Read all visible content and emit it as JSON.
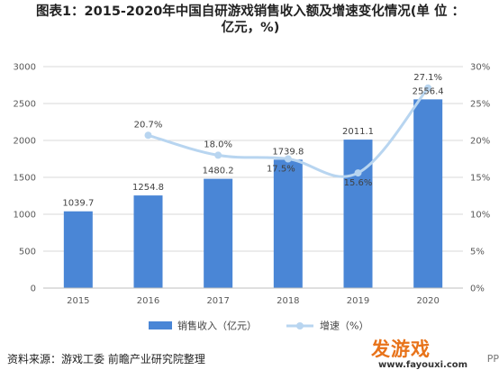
{
  "header": {
    "title_line1": "图表1：2015-2020年中国自研游戏销售收入额及增速变化情况(单 位 ：",
    "title_line2": "亿元，%)"
  },
  "chart_data": {
    "type": "bar",
    "categories": [
      "2015",
      "2016",
      "2017",
      "2018",
      "2019",
      "2020"
    ],
    "series": [
      {
        "name": "销售收入（亿元）",
        "type": "bar",
        "axis": "left",
        "color": "#4a86d6",
        "values": [
          1039.7,
          1254.8,
          1480.2,
          1739.8,
          2011.1,
          2556.4
        ],
        "labels": [
          "1039.7",
          "1254.8",
          "1480.2",
          "1739.8",
          "2011.1",
          "2556.4"
        ]
      },
      {
        "name": "增速（%）",
        "type": "line",
        "axis": "right",
        "color": "#b8d5f0",
        "x": [
          "2016",
          "2017",
          "2018",
          "2019",
          "2020"
        ],
        "values": [
          20.7,
          18.0,
          17.5,
          15.6,
          27.1
        ],
        "labels": [
          "20.7%",
          "18.0%",
          "17.5%",
          "15.6%",
          "27.1%"
        ]
      }
    ],
    "ylim_left": [
      0,
      3000
    ],
    "ylim_right": [
      0,
      30
    ],
    "yticks_left": [
      "0",
      "500",
      "1000",
      "1500",
      "2000",
      "2500",
      "3000"
    ],
    "yticks_right": [
      "0%",
      "5%",
      "10%",
      "15%",
      "20%",
      "25%",
      "30%"
    ],
    "grid": true,
    "legend_position": "bottom"
  },
  "footer": {
    "source": "资料来源：游戏工委 前瞻产业研究院整理",
    "logo_text": "发游戏",
    "logo_url": "www.fayouxi.com",
    "corner_text": "PP"
  }
}
